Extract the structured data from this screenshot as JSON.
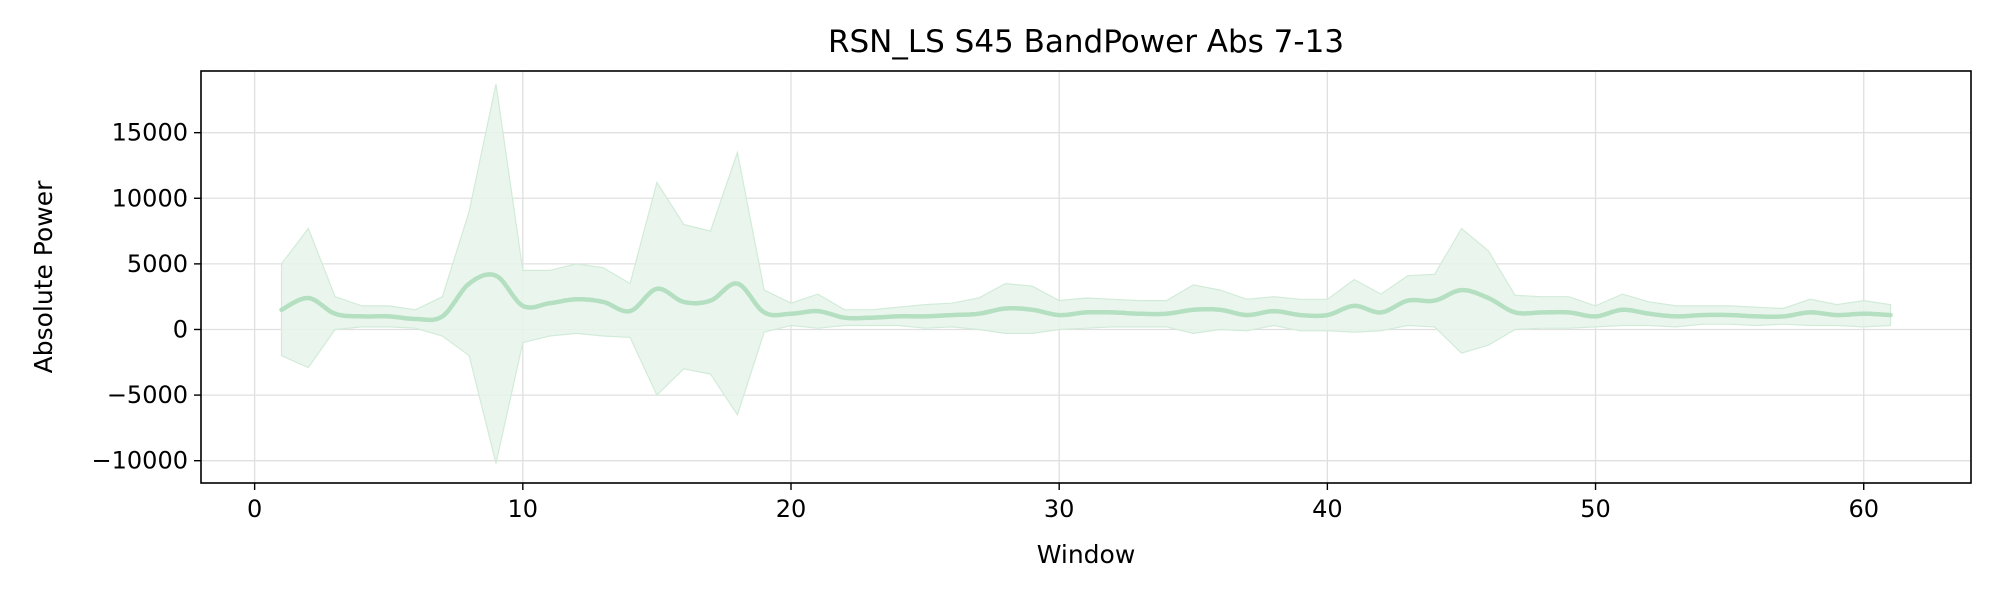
{
  "chart_data": {
    "type": "line",
    "title": "RSN_LS S45 BandPower Abs 7-13",
    "xlabel": "Window",
    "ylabel": "Absolute Power",
    "xlim": [
      -2,
      64
    ],
    "ylim": [
      -11700,
      19700
    ],
    "xticks": [
      0,
      10,
      20,
      30,
      40,
      50,
      60
    ],
    "yticks": [
      -10000,
      -5000,
      0,
      5000,
      10000,
      15000
    ],
    "ytick_labels": [
      "−10000",
      "−5000",
      "0",
      "5000",
      "10000",
      "15000"
    ],
    "grid": true,
    "legend": "none",
    "colors": {
      "line": "#b4dfc1",
      "band": "#e6f4ea",
      "band_edge": "#d2ebd9"
    },
    "series": [
      {
        "x": [
          1,
          2,
          3,
          4,
          5,
          6,
          7,
          8,
          9,
          10,
          11,
          12,
          13,
          14,
          15,
          16,
          17,
          18,
          19,
          20,
          21,
          22,
          23,
          24,
          25,
          26,
          27,
          28,
          29,
          30,
          31,
          32,
          33,
          34,
          35,
          36,
          37,
          38,
          39,
          40,
          41,
          42,
          43,
          44,
          45,
          46,
          47,
          48,
          49,
          50,
          51,
          52,
          53,
          54,
          55,
          56,
          57,
          58,
          59,
          60,
          61
        ],
        "mean": [
          1500,
          2400,
          1200,
          1000,
          1000,
          800,
          1000,
          3500,
          4100,
          1800,
          2000,
          2300,
          2100,
          1400,
          3100,
          2100,
          2200,
          3500,
          1300,
          1200,
          1400,
          900,
          900,
          1000,
          1000,
          1100,
          1200,
          1600,
          1500,
          1100,
          1300,
          1300,
          1200,
          1200,
          1500,
          1500,
          1100,
          1400,
          1100,
          1100,
          1800,
          1300,
          2200,
          2200,
          3000,
          2400,
          1300,
          1300,
          1300,
          1000,
          1500,
          1200,
          1000,
          1100,
          1100,
          1000,
          1000,
          1300,
          1100,
          1200,
          1100
        ],
        "upper": [
          5000,
          7700,
          2500,
          1800,
          1800,
          1500,
          2500,
          9000,
          18700,
          4500,
          4500,
          5000,
          4700,
          3500,
          11200,
          8000,
          7500,
          13500,
          3000,
          2000,
          2700,
          1500,
          1500,
          1700,
          1900,
          2000,
          2400,
          3500,
          3300,
          2200,
          2400,
          2300,
          2200,
          2200,
          3400,
          3000,
          2300,
          2500,
          2300,
          2300,
          3800,
          2700,
          4100,
          4200,
          7700,
          6000,
          2600,
          2500,
          2500,
          1800,
          2700,
          2100,
          1800,
          1800,
          1800,
          1700,
          1600,
          2300,
          1900,
          2200,
          1900
        ],
        "lower": [
          -2000,
          -2900,
          0,
          200,
          200,
          100,
          -500,
          -2000,
          -10200,
          -1000,
          -500,
          -300,
          -500,
          -600,
          -5000,
          -3000,
          -3400,
          -6500,
          -200,
          300,
          100,
          300,
          300,
          300,
          100,
          200,
          0,
          -300,
          -300,
          0,
          100,
          200,
          200,
          200,
          -300,
          0,
          -100,
          300,
          -100,
          -100,
          -200,
          -100,
          300,
          200,
          -1800,
          -1200,
          0,
          100,
          100,
          200,
          300,
          300,
          200,
          400,
          400,
          300,
          400,
          300,
          300,
          200,
          300
        ]
      }
    ]
  }
}
